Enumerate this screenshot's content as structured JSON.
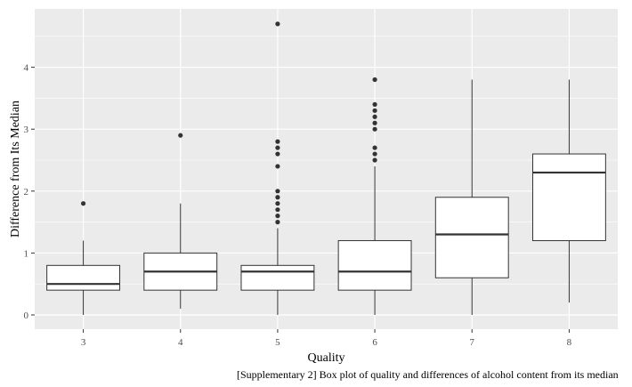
{
  "chart_data": {
    "type": "box",
    "xlabel": "Quality",
    "ylabel": "Difference from Its Median",
    "categories": [
      "3",
      "4",
      "5",
      "6",
      "7",
      "8"
    ],
    "yticks": [
      0,
      1,
      2,
      3,
      4
    ],
    "ylim": [
      -0.2,
      4.9
    ],
    "grid": true,
    "boxes": [
      {
        "category": "3",
        "whisker_low": 0.0,
        "q1": 0.4,
        "median": 0.5,
        "q3": 0.8,
        "whisker_high": 1.2,
        "outliers": [
          1.8
        ]
      },
      {
        "category": "4",
        "whisker_low": 0.1,
        "q1": 0.4,
        "median": 0.7,
        "q3": 1.0,
        "whisker_high": 1.8,
        "outliers": [
          2.9
        ]
      },
      {
        "category": "5",
        "whisker_low": 0.0,
        "q1": 0.4,
        "median": 0.7,
        "q3": 0.8,
        "whisker_high": 1.4,
        "outliers": [
          1.5,
          1.6,
          1.7,
          1.8,
          1.9,
          2.0,
          2.4,
          2.6,
          2.7,
          2.8,
          4.7
        ]
      },
      {
        "category": "6",
        "whisker_low": 0.0,
        "q1": 0.4,
        "median": 0.7,
        "q3": 1.2,
        "whisker_high": 2.4,
        "outliers": [
          2.5,
          2.6,
          2.7,
          3.0,
          3.1,
          3.2,
          3.3,
          3.4,
          3.8
        ]
      },
      {
        "category": "7",
        "whisker_low": 0.0,
        "q1": 0.6,
        "median": 1.3,
        "q3": 1.9,
        "whisker_high": 3.8,
        "outliers": []
      },
      {
        "category": "8",
        "whisker_low": 0.2,
        "q1": 1.2,
        "median": 2.3,
        "q3": 2.6,
        "whisker_high": 3.8,
        "outliers": []
      }
    ],
    "colors": {
      "panel": "#ebebeb",
      "grid": "#ffffff",
      "box_fill": "#ffffff",
      "box_stroke": "#333333",
      "outlier": "#333333"
    }
  },
  "caption": "[Supplementary 2] Box plot of quality and differences of alcohol content from its median"
}
